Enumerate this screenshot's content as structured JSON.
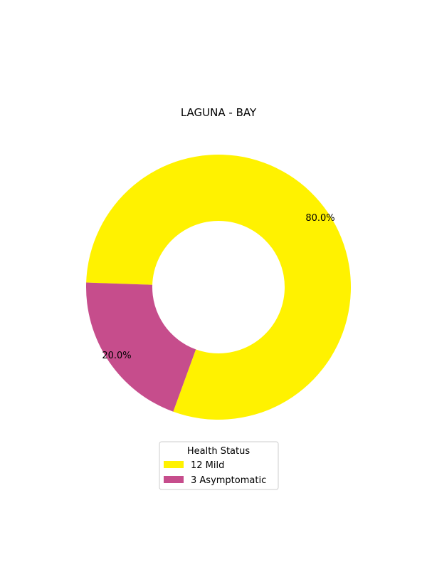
{
  "chart_data": {
    "type": "pie",
    "variant": "donut",
    "title": "LAGUNA - BAY",
    "start_angle_deg": 250,
    "direction": "counterclockwise",
    "slices": [
      {
        "category": "Mild",
        "count": 12,
        "value": 80.0,
        "label": "80.0%",
        "legend": "12  Mild",
        "color": "#fff200"
      },
      {
        "category": "Asymptomatic",
        "count": 3,
        "value": 20.0,
        "label": "20.0%",
        "legend": "3  Asymptomatic",
        "color": "#c64d8c"
      }
    ],
    "legend": {
      "title": "Health Status",
      "placement": "bottom-center"
    }
  }
}
